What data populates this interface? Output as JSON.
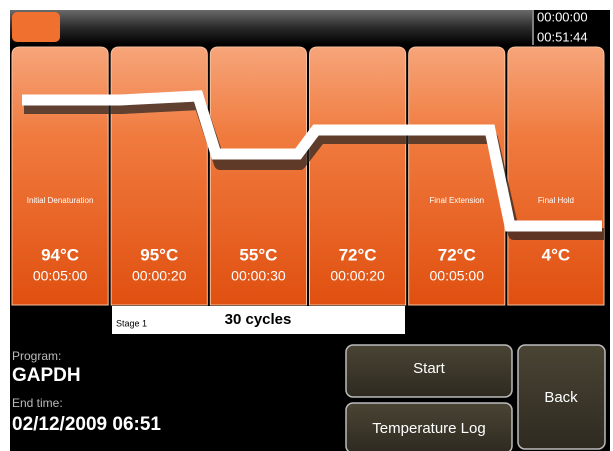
{
  "header": {
    "elapsed_time": "00:00:00",
    "remaining_time": "00:51:44"
  },
  "steps": [
    {
      "label": "Initial Denaturation",
      "temperature": "94°C",
      "time": "00:05:00"
    },
    {
      "temperature": "95°C",
      "time": "00:00:20"
    },
    {
      "temperature": "55°C",
      "time": "00:00:30"
    },
    {
      "temperature": "72°C",
      "time": "00:00:20"
    },
    {
      "label": "Final Extension",
      "temperature": "72°C",
      "time": "00:05:00"
    },
    {
      "label": "Final Hold",
      "temperature": "4°C"
    }
  ],
  "stage": {
    "label": "Stage 1",
    "cycles": "30 cycles"
  },
  "program": {
    "label": "Program:",
    "name": "GAPDH"
  },
  "end_time": {
    "label": "End time:",
    "value": "02/12/2009 06:51"
  },
  "buttons": {
    "start": "Start",
    "temperature_log": "Temperature Log",
    "back": "Back"
  }
}
